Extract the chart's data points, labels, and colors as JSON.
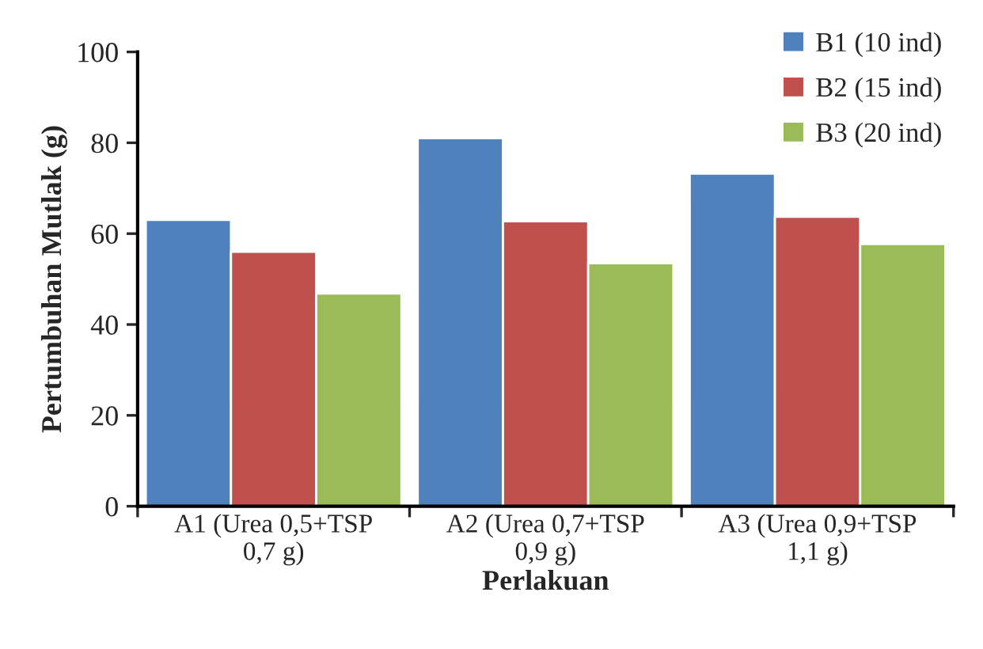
{
  "chart_data": {
    "type": "bar",
    "xlabel": "Perlakuan",
    "ylabel": "Pertumbuhan Mutlak (g)",
    "categories": [
      "A1 (Urea 0,5+TSP\n0,7 g)",
      "A2 (Urea 0,7+TSP\n0,9 g)",
      "A3 (Urea 0,9+TSP\n1,1 g)"
    ],
    "series": [
      {
        "name": "B1 (10 ind)",
        "color": "#4f81bd",
        "values": [
          63,
          81,
          73.2
        ]
      },
      {
        "name": "B2 (15 ind)",
        "color": "#c0504d",
        "values": [
          56,
          62.7,
          63.7
        ]
      },
      {
        "name": "B3 (20 ind)",
        "color": "#9bbb59",
        "values": [
          46.8,
          53.5,
          57.7
        ]
      }
    ],
    "ylim": [
      0,
      100
    ],
    "yticks": [
      0,
      20,
      40,
      60,
      80,
      100
    ],
    "grid": false,
    "legend": "top right"
  }
}
